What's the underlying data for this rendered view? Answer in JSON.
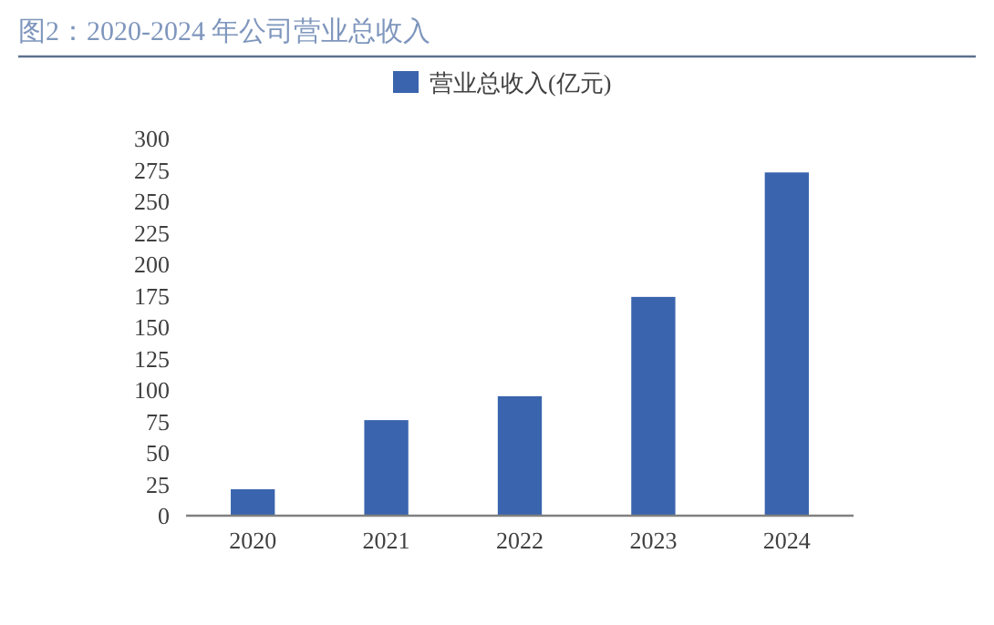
{
  "chart_data": {
    "type": "bar",
    "title": "图2：2020-2024 年公司营业总收入",
    "categories": [
      "2020",
      "2021",
      "2022",
      "2023",
      "2024"
    ],
    "series": [
      {
        "name": "营业总收入(亿元)",
        "color": "#3a64ad",
        "values": [
          21,
          76,
          95,
          174,
          273
        ]
      }
    ],
    "ylim": [
      0,
      300
    ],
    "yticks": [
      0,
      25,
      50,
      75,
      100,
      125,
      150,
      175,
      200,
      225,
      250,
      275,
      300
    ],
    "grid": false,
    "legend": "top"
  }
}
